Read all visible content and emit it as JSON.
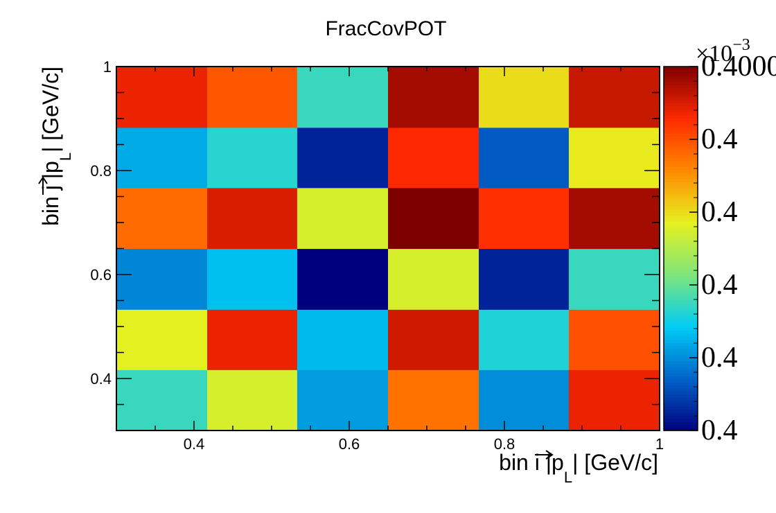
{
  "chart_data": {
    "type": "heatmap",
    "title": "FracCovPOT",
    "xlabel": {
      "prefix": "bin i |",
      "p": "p",
      "sub": "L",
      "suffix": "| [GeV/c]"
    },
    "ylabel": {
      "prefix": "bin j |",
      "p": "p",
      "sub": "L",
      "suffix": "| [GeV/c]"
    },
    "x_edges": [
      0.3,
      0.417,
      0.533,
      0.65,
      0.767,
      0.883,
      1.0
    ],
    "y_edges": [
      0.3,
      0.417,
      0.533,
      0.65,
      0.767,
      0.883,
      1.0
    ],
    "xlim": [
      0.3,
      1.0
    ],
    "ylim": [
      0.3,
      1.0
    ],
    "x_ticks": [
      0.4,
      0.6,
      0.8,
      1
    ],
    "x_tick_labels": [
      "0.4",
      "0.6",
      "0.8",
      "1"
    ],
    "y_ticks": [
      0.4,
      0.6,
      0.8,
      1
    ],
    "y_tick_labels": [
      "0.4",
      "0.6",
      "0.8",
      "1"
    ],
    "z_norm": [
      [
        0.35,
        0.55,
        0.22,
        0.75,
        0.2,
        0.88
      ],
      [
        0.57,
        0.88,
        0.26,
        0.91,
        0.32,
        0.8
      ],
      [
        0.19,
        0.27,
        0.0,
        0.55,
        0.05,
        0.35
      ],
      [
        0.76,
        0.9,
        0.55,
        1.0,
        0.85,
        0.96
      ],
      [
        0.24,
        0.33,
        0.05,
        0.86,
        0.13,
        0.58
      ],
      [
        0.88,
        0.79,
        0.35,
        0.96,
        0.6,
        0.92
      ]
    ],
    "colorbar": {
      "multiplier": "×10",
      "exponent": "−3",
      "tick_labels": [
        "0.4",
        "0.4",
        "0.4",
        "0.4",
        "0.4",
        "0.4000"
      ],
      "palette": [
        "#00007f",
        "#0063c8",
        "#00ccf5",
        "#7ee67a",
        "#e6f020",
        "#ff8a00",
        "#ff2a00",
        "#7f0000"
      ]
    },
    "grid": false,
    "legend": "none"
  }
}
